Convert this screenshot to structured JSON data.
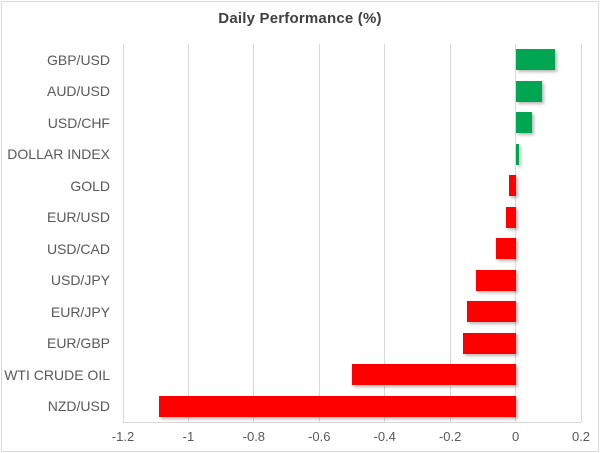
{
  "chart_data": {
    "type": "bar",
    "orientation": "horizontal",
    "title": "Daily Performance (%)",
    "categories": [
      "GBP/USD",
      "AUD/USD",
      "USD/CHF",
      "DOLLAR INDEX",
      "GOLD",
      "EUR/USD",
      "USD/CAD",
      "USD/JPY",
      "EUR/JPY",
      "EUR/GBP",
      "WTI CRUDE OIL",
      "NZD/USD"
    ],
    "values": [
      0.12,
      0.08,
      0.05,
      0.01,
      -0.02,
      -0.03,
      -0.06,
      -0.12,
      -0.15,
      -0.16,
      -0.5,
      -1.09
    ],
    "xlim": [
      -1.2,
      0.2
    ],
    "x_tick_labels": [
      "-1.2",
      "-1",
      "-0.8",
      "-0.6",
      "-0.4",
      "-0.2",
      "0",
      "0.2"
    ],
    "x_tick_values": [
      -1.2,
      -1,
      -0.8,
      -0.6,
      -0.4,
      -0.2,
      0,
      0.2
    ],
    "grid": true,
    "legend": "none",
    "colors": {
      "positive": "#00A651",
      "negative": "#FF0000",
      "gridline": "#D9D9D9",
      "axis_text": "#595959",
      "title_text": "#404040",
      "chart_border": "#D9D9D9",
      "background": "#FFFFFF"
    }
  }
}
